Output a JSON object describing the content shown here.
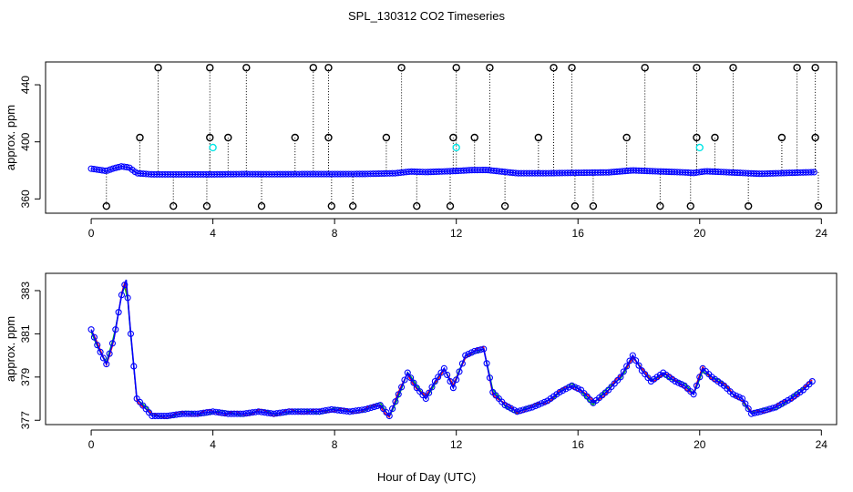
{
  "title": "SPL_130312  CO2 Timeseries",
  "xlabel": "Hour of Day (UTC)",
  "colors": {
    "line": "#0000ff",
    "black": "#000000",
    "red": "#ff0000",
    "green": "#00cc00",
    "cyan": "#00e5e5"
  },
  "chart_data": [
    {
      "type": "scatter",
      "name": "top-panel",
      "ylabel": "approx. ppm",
      "xlim": [
        -1.5,
        24.5
      ],
      "ylim": [
        350,
        456
      ],
      "xticks": [
        0,
        4,
        8,
        12,
        16,
        20,
        24
      ],
      "yticks": [
        360,
        400,
        440
      ],
      "baseline_series": {
        "name": "CO2",
        "x": [
          0,
          0.25,
          0.5,
          0.75,
          1.0,
          1.25,
          1.5,
          2,
          3,
          4,
          5,
          6,
          7,
          8,
          9,
          10,
          10.5,
          11,
          12,
          12.5,
          13,
          14,
          15,
          16,
          17,
          17.8,
          18.5,
          19.5,
          19.8,
          20.2,
          21,
          22,
          23,
          23.8
        ],
        "y": [
          381.2,
          380.4,
          379.6,
          381.5,
          382.8,
          382.0,
          378.0,
          377.2,
          377.2,
          377.2,
          377.4,
          377.3,
          377.4,
          377.4,
          377.5,
          378.0,
          379.2,
          378.8,
          379.6,
          380.2,
          380.3,
          378.0,
          378.0,
          378.3,
          378.6,
          380.0,
          379.4,
          378.6,
          378.2,
          379.4,
          378.6,
          377.6,
          378.3,
          378.8
        ]
      },
      "spikes_high": {
        "name": "outliers-high",
        "x": [
          2.2,
          3.9,
          5.1,
          7.3,
          7.8,
          10.2,
          12.0,
          13.1,
          15.2,
          15.8,
          18.2,
          19.9,
          21.1,
          23.2,
          23.8
        ],
        "y": [
          452,
          452,
          452,
          452,
          452,
          452,
          452,
          452,
          452,
          452,
          452,
          452,
          452,
          452,
          452
        ]
      },
      "spikes_mid": {
        "name": "outliers-mid",
        "x": [
          1.6,
          3.9,
          4.5,
          6.7,
          7.8,
          9.7,
          11.9,
          12.6,
          14.7,
          17.6,
          19.9,
          20.5,
          22.7,
          23.8
        ],
        "y": [
          403,
          403,
          403,
          403,
          403,
          403,
          403,
          403,
          403,
          403,
          403,
          403,
          403,
          403
        ]
      },
      "spikes_low": {
        "name": "outliers-low",
        "x": [
          0.5,
          2.7,
          3.8,
          5.6,
          7.9,
          8.6,
          10.7,
          11.8,
          13.6,
          15.9,
          16.5,
          18.7,
          19.7,
          21.6,
          23.9
        ],
        "y": [
          355,
          355,
          355,
          355,
          355,
          355,
          355,
          355,
          355,
          355,
          355,
          355,
          355,
          355,
          355
        ]
      },
      "cyan_points": {
        "name": "flagged",
        "x": [
          4.0,
          12.0,
          20.0
        ],
        "y": [
          396,
          396,
          396
        ]
      }
    },
    {
      "type": "line",
      "name": "bottom-panel",
      "ylabel": "approx. ppm",
      "xlim": [
        -1.5,
        24.5
      ],
      "ylim": [
        376.8,
        383.8
      ],
      "xticks": [
        0,
        4,
        8,
        12,
        16,
        20,
        24
      ],
      "yticks": [
        377,
        379,
        381,
        383
      ],
      "x": [
        0,
        0.25,
        0.5,
        0.75,
        1.0,
        1.15,
        1.3,
        1.5,
        2,
        2.5,
        3,
        3.5,
        4,
        4.5,
        5,
        5.5,
        6,
        6.5,
        7,
        7.5,
        7.9,
        8.5,
        9,
        9.5,
        9.8,
        10.1,
        10.4,
        10.7,
        11.0,
        11.3,
        11.6,
        11.9,
        12.3,
        12.6,
        12.9,
        13.2,
        13.6,
        14.0,
        14.5,
        15.0,
        15.4,
        15.8,
        16.1,
        16.5,
        17.0,
        17.4,
        17.8,
        18.1,
        18.4,
        18.8,
        19.2,
        19.5,
        19.8,
        20.1,
        20.4,
        20.8,
        21.1,
        21.4,
        21.7,
        22.0,
        22.5,
        23.0,
        23.4,
        23.7
      ],
      "y": [
        381.2,
        380.3,
        379.6,
        380.8,
        382.8,
        383.5,
        381.0,
        378.0,
        377.2,
        377.2,
        377.3,
        377.3,
        377.4,
        377.3,
        377.3,
        377.4,
        377.3,
        377.4,
        377.4,
        377.4,
        377.5,
        377.4,
        377.5,
        377.7,
        377.2,
        378.2,
        379.2,
        378.5,
        378.0,
        378.8,
        379.4,
        378.5,
        380.0,
        380.2,
        380.3,
        378.3,
        377.7,
        377.4,
        377.6,
        377.9,
        378.3,
        378.6,
        378.4,
        377.8,
        378.4,
        379.0,
        380.0,
        379.3,
        378.8,
        379.2,
        378.8,
        378.6,
        378.2,
        379.4,
        379.0,
        378.6,
        378.2,
        378.0,
        377.3,
        377.4,
        377.6,
        378.0,
        378.4,
        378.8
      ]
    }
  ]
}
